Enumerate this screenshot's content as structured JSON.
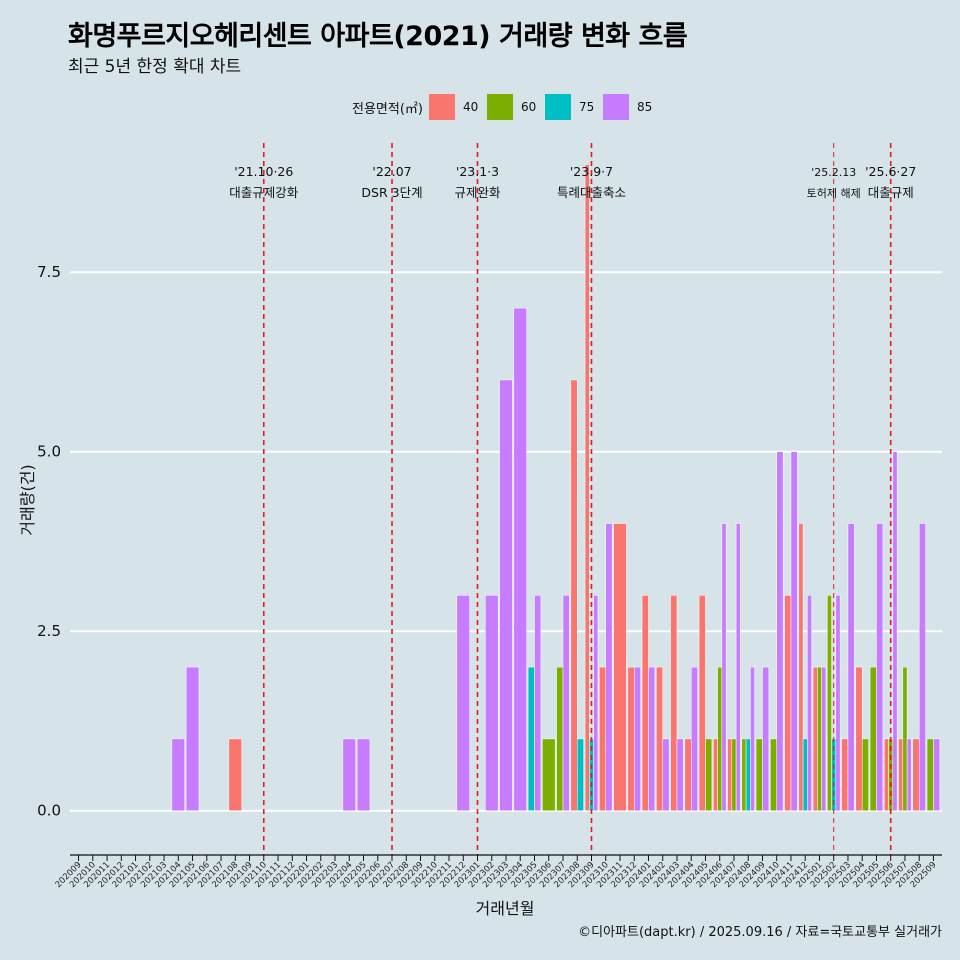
{
  "title": "화명푸르지오헤리센트 아파트(2021) 거래량 변화 흐름",
  "subtitle": "최근 5년 한정 확대 차트",
  "caption": "©디아파트(dapt.kr) / 2025.09.16 / 자료=국토교통부 실거래가",
  "legend": {
    "title": "전용면적(㎡)",
    "items": [
      {
        "label": "40",
        "color": "#f8766d"
      },
      {
        "label": "60",
        "color": "#7cae00"
      },
      {
        "label": "75",
        "color": "#00bfc4"
      },
      {
        "label": "85",
        "color": "#c77cff"
      }
    ]
  },
  "chart_data": {
    "type": "bar",
    "xlabel": "거래년월",
    "ylabel": "거래량(건)",
    "ylim": [
      -0.45,
      9.3
    ],
    "yticks": [
      0.0,
      2.5,
      5.0,
      7.5
    ],
    "ytick_labels": [
      "0.0",
      "2.5",
      "5.0",
      "7.5"
    ],
    "grid": "horizontal",
    "legend_position": "top",
    "categories": [
      "202009",
      "202010",
      "202011",
      "202012",
      "202101",
      "202102",
      "202103",
      "202104",
      "202105",
      "202106",
      "202107",
      "202108",
      "202109",
      "202110",
      "202111",
      "202112",
      "202201",
      "202202",
      "202203",
      "202204",
      "202205",
      "202206",
      "202207",
      "202208",
      "202209",
      "202210",
      "202211",
      "202212",
      "202301",
      "202302",
      "202303",
      "202304",
      "202305",
      "202306",
      "202307",
      "202308",
      "202309",
      "202310",
      "202311",
      "202312",
      "202401",
      "202402",
      "202403",
      "202404",
      "202405",
      "202406",
      "202407",
      "202408",
      "202409",
      "202410",
      "202411",
      "202412",
      "202501",
      "202502",
      "202503",
      "202504",
      "202505",
      "202506",
      "202507",
      "202508",
      "202509"
    ],
    "series": [
      {
        "name": "40",
        "color": "#f8766d",
        "points": [
          [
            "202108",
            1
          ],
          [
            "202308",
            6
          ],
          [
            "202309",
            9
          ],
          [
            "202310",
            2
          ],
          [
            "202311",
            4
          ],
          [
            "202312",
            2
          ],
          [
            "202401",
            3
          ],
          [
            "202402",
            2
          ],
          [
            "202403",
            3
          ],
          [
            "202404",
            1
          ],
          [
            "202405",
            3
          ],
          [
            "202406",
            1
          ],
          [
            "202407",
            1
          ],
          [
            "202411",
            3
          ],
          [
            "202412",
            4
          ],
          [
            "202501",
            2
          ],
          [
            "202503",
            1
          ],
          [
            "202504",
            2
          ],
          [
            "202506",
            1
          ],
          [
            "202507",
            1
          ],
          [
            "202508",
            1
          ]
        ]
      },
      {
        "name": "60",
        "color": "#7cae00",
        "points": [
          [
            "202306",
            1
          ],
          [
            "202307",
            2
          ],
          [
            "202405",
            1
          ],
          [
            "202406",
            2
          ],
          [
            "202407",
            1
          ],
          [
            "202408",
            1
          ],
          [
            "202409",
            1
          ],
          [
            "202410",
            1
          ],
          [
            "202501",
            2
          ],
          [
            "202502",
            3
          ],
          [
            "202504",
            1
          ],
          [
            "202505",
            2
          ],
          [
            "202506",
            1
          ],
          [
            "202507",
            2
          ],
          [
            "202509",
            1
          ]
        ]
      },
      {
        "name": "75",
        "color": "#00bfc4",
        "points": [
          [
            "202305",
            2
          ],
          [
            "202308",
            1
          ],
          [
            "202309",
            1
          ],
          [
            "202408",
            1
          ],
          [
            "202412",
            1
          ],
          [
            "202502",
            1
          ]
        ]
      },
      {
        "name": "85",
        "color": "#c77cff",
        "points": [
          [
            "202104",
            1
          ],
          [
            "202105",
            2
          ],
          [
            "202204",
            1
          ],
          [
            "202205",
            1
          ],
          [
            "202212",
            3
          ],
          [
            "202302",
            3
          ],
          [
            "202303",
            6
          ],
          [
            "202304",
            7
          ],
          [
            "202305",
            3
          ],
          [
            "202307",
            3
          ],
          [
            "202309",
            3
          ],
          [
            "202310",
            4
          ],
          [
            "202312",
            2
          ],
          [
            "202401",
            2
          ],
          [
            "202402",
            1
          ],
          [
            "202403",
            1
          ],
          [
            "202404",
            2
          ],
          [
            "202406",
            4
          ],
          [
            "202407",
            4
          ],
          [
            "202408",
            2
          ],
          [
            "202409",
            2
          ],
          [
            "202410",
            5
          ],
          [
            "202411",
            5
          ],
          [
            "202412",
            3
          ],
          [
            "202501",
            2
          ],
          [
            "202502",
            3
          ],
          [
            "202503",
            4
          ],
          [
            "202505",
            4
          ],
          [
            "202506",
            5
          ],
          [
            "202507",
            1
          ],
          [
            "202508",
            4
          ],
          [
            "202509",
            1
          ]
        ]
      }
    ],
    "annotations": [
      {
        "date_label": "'21.10·26",
        "text": "대출규제강화",
        "x": "202110",
        "offset": 0.0
      },
      {
        "date_label": "'22.07",
        "text": "DSR 3단계",
        "x": "202207",
        "offset": 0.0
      },
      {
        "date_label": "'23.1·3",
        "text": "규제완화",
        "x": "202301",
        "offset": 0.0
      },
      {
        "date_label": "'23.9·7",
        "text": "특례대출축소",
        "x": "202309",
        "offset": 0.0
      },
      {
        "date_label": "'25.2.13",
        "text": "토허제 해제",
        "x": "202502",
        "offset": 0.0
      },
      {
        "date_label": "'25.6·27",
        "text": "대출규제",
        "x": "202506",
        "offset": 0.0
      }
    ]
  }
}
